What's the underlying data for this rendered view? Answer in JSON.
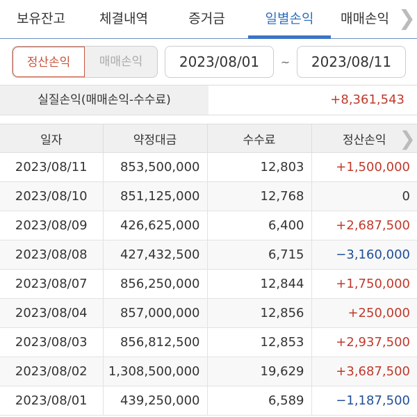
{
  "tabs": [
    {
      "label": "보유잔고"
    },
    {
      "label": "체결내역"
    },
    {
      "label": "증거금"
    },
    {
      "label": "일별손익",
      "active": true
    },
    {
      "label": "매매손익"
    }
  ],
  "toolbar": {
    "mode_options": [
      "정산손익",
      "매매손익"
    ],
    "selected_mode": "정산손익",
    "start_date": "2023/08/01",
    "separator": "~",
    "end_date": "2023/08/11"
  },
  "summary": {
    "label": "실질손익(매매손익-수수료)",
    "value": "+8,361,543"
  },
  "table": {
    "headers": [
      "일자",
      "약정대금",
      "수수료",
      "정산손익"
    ],
    "rows": [
      [
        "2023/08/11",
        "853,500,000",
        "12,803",
        "+1,500,000"
      ],
      [
        "2023/08/10",
        "851,125,000",
        "12,768",
        "0"
      ],
      [
        "2023/08/09",
        "426,625,000",
        "6,400",
        "+2,687,500"
      ],
      [
        "2023/08/08",
        "427,432,500",
        "6,715",
        "−3,160,000"
      ],
      [
        "2023/08/07",
        "856,250,000",
        "12,844",
        "+1,750,000"
      ],
      [
        "2023/08/04",
        "857,000,000",
        "12,856",
        "+250,000"
      ],
      [
        "2023/08/03",
        "856,812,500",
        "12,853",
        "+2,937,500"
      ],
      [
        "2023/08/02",
        "1,308,500,000",
        "19,629",
        "+3,687,500"
      ],
      [
        "2023/08/01",
        "439,250,000",
        "6,589",
        "−1,187,500"
      ]
    ]
  },
  "colors": {
    "accent": "#3b75c4",
    "positive": "#c0392b",
    "negative": "#1f4f96",
    "selected_mode": "#c8533a"
  }
}
